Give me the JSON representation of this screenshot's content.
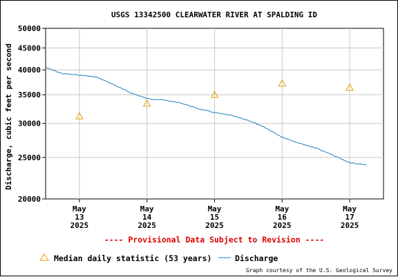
{
  "chart_data": {
    "type": "line",
    "title": "USGS 13342500 CLEARWATER RIVER AT SPALDING ID",
    "ylabel": "Discharge, cubic feet per second",
    "xlabel": "",
    "y_scale": "log",
    "ylim": [
      20000,
      50000
    ],
    "xlim": [
      "2025-05-12 12:00",
      "2025-05-17 12:00"
    ],
    "y_ticks": [
      "20000",
      "25000",
      "30000",
      "35000",
      "40000",
      "45000",
      "50000"
    ],
    "y_tick_values": [
      20000,
      25000,
      30000,
      35000,
      40000,
      45000,
      50000
    ],
    "x_ticks": [
      {
        "month": "May",
        "day": "13",
        "year": "2025",
        "date": "2025-05-13"
      },
      {
        "month": "May",
        "day": "14",
        "year": "2025",
        "date": "2025-05-14"
      },
      {
        "month": "May",
        "day": "15",
        "year": "2025",
        "date": "2025-05-15"
      },
      {
        "month": "May",
        "day": "16",
        "year": "2025",
        "date": "2025-05-16"
      },
      {
        "month": "May",
        "day": "17",
        "year": "2025",
        "date": "2025-05-17"
      }
    ],
    "grid": true,
    "legend_position": "bottom",
    "series": [
      {
        "name": "Median daily statistic (53 years)",
        "kind": "marker",
        "marker": "triangle",
        "color": "#e69e00",
        "x": [
          "2025-05-13",
          "2025-05-14",
          "2025-05-15",
          "2025-05-16",
          "2025-05-17"
        ],
        "y": [
          31200,
          33400,
          35000,
          37200,
          36400
        ]
      },
      {
        "name": "Discharge",
        "kind": "line",
        "color": "#1f80b8",
        "x": [
          "2025-05-12 12:00",
          "2025-05-12 18:00",
          "2025-05-13 00:00",
          "2025-05-13 06:00",
          "2025-05-13 12:00",
          "2025-05-13 18:00",
          "2025-05-14 00:00",
          "2025-05-14 06:00",
          "2025-05-14 12:00",
          "2025-05-14 18:00",
          "2025-05-15 00:00",
          "2025-05-15 06:00",
          "2025-05-15 12:00",
          "2025-05-15 18:00",
          "2025-05-16 00:00",
          "2025-05-16 06:00",
          "2025-05-16 12:00",
          "2025-05-16 18:00",
          "2025-05-17 00:00",
          "2025-05-17 06:00"
        ],
        "y": [
          40500,
          39200,
          38900,
          38500,
          37000,
          35400,
          34300,
          34000,
          33500,
          32500,
          31800,
          31300,
          30500,
          29300,
          27900,
          27000,
          26300,
          25300,
          24300,
          24000
        ]
      }
    ]
  },
  "annotation": "---- Provisional Data Subject to Revision ----",
  "credit": "Graph courtesy of the U.S. Geological Survey"
}
